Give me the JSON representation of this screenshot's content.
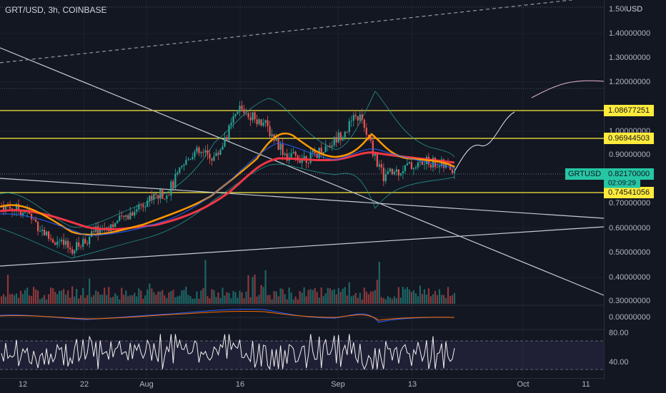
{
  "header": {
    "title": "GRT/USD, 3h, COINBASE",
    "currency": "USD"
  },
  "price_axis": {
    "labels": [
      "1.50000000",
      "1.40000000",
      "1.30000000",
      "1.20000000",
      "1.00000000",
      "0.90000000",
      "0.70000000",
      "0.60000000",
      "0.50000000",
      "0.40000000",
      "0.30000000"
    ],
    "macd_label": "0.00000000",
    "rsi_labels": [
      "80.00",
      "40.00"
    ]
  },
  "price_tags": [
    {
      "value": "1.08677251",
      "color": "#ffeb3b"
    },
    {
      "value": "0.96944503",
      "color": "#ffeb3b"
    },
    {
      "value": "0.74541056",
      "color": "#ffeb3b"
    }
  ],
  "current": {
    "symbol": "GRTUSD",
    "price": "0.82170000",
    "countdown": "02:09:29",
    "color": "#26c6a4"
  },
  "time_axis": [
    "12",
    "22",
    "Aug",
    "16",
    "Sep",
    "13",
    "Oct",
    "11"
  ],
  "colors": {
    "background": "#131722",
    "up": "#26a69a",
    "down": "#ef5350",
    "ema_fast": "#ff9800",
    "ema_slow": "#f23645",
    "bb": "#26a69a",
    "rsi": "#ffffff"
  },
  "chart_data": {
    "type": "candlestick",
    "symbol": "GRT/USD",
    "interval": "3h",
    "exchange": "COINBASE",
    "ylim": [
      0.27,
      1.52
    ],
    "horizontal_levels": [
      1.08677251,
      0.96944503,
      0.74541056
    ],
    "last_price": 0.8217,
    "indicators": [
      "EMA fast",
      "EMA slow",
      "Bollinger Bands",
      "Volume",
      "MACD",
      "RSI"
    ],
    "rsi_levels": [
      70,
      30
    ],
    "approx_close_path": [
      {
        "x": "Jul 10",
        "y": 0.68
      },
      {
        "x": "Jul 14",
        "y": 0.66
      },
      {
        "x": "Jul 18",
        "y": 0.55
      },
      {
        "x": "Jul 20",
        "y": 0.5
      },
      {
        "x": "Jul 24",
        "y": 0.58
      },
      {
        "x": "Jul 28",
        "y": 0.62
      },
      {
        "x": "Aug 2",
        "y": 0.7
      },
      {
        "x": "Aug 6",
        "y": 0.74
      },
      {
        "x": "Aug 10",
        "y": 0.9
      },
      {
        "x": "Aug 14",
        "y": 0.88
      },
      {
        "x": "Aug 18",
        "y": 1.08
      },
      {
        "x": "Aug 22",
        "y": 1.02
      },
      {
        "x": "Aug 26",
        "y": 0.88
      },
      {
        "x": "Aug 30",
        "y": 0.88
      },
      {
        "x": "Sep 3",
        "y": 0.95
      },
      {
        "x": "Sep 6",
        "y": 1.05
      },
      {
        "x": "Sep 7",
        "y": 0.8
      },
      {
        "x": "Sep 11",
        "y": 0.84
      },
      {
        "x": "Sep 15",
        "y": 0.86
      },
      {
        "x": "Sep 18",
        "y": 0.83
      }
    ]
  }
}
